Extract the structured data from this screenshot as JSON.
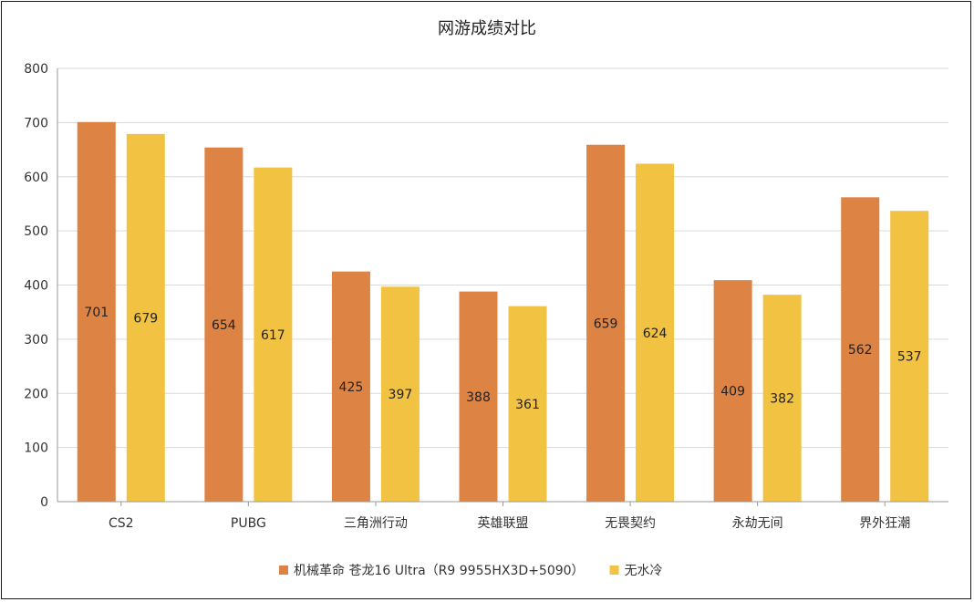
{
  "chart_data": {
    "type": "bar",
    "title": "网游成绩对比",
    "xlabel": "",
    "ylabel": "",
    "ylim": [
      0,
      800
    ],
    "yticks": [
      0,
      100,
      200,
      300,
      400,
      500,
      600,
      700,
      800
    ],
    "grid": true,
    "legend_position": "bottom",
    "categories": [
      "CS2",
      "PUBG",
      "三角洲行动",
      "英雄联盟",
      "无畏契约",
      "永劫无间",
      "界外狂潮"
    ],
    "series": [
      {
        "name": "机械革命 苍龙16 Ultra（R9 9955HX3D+5090）",
        "color": "#DD8444",
        "values": [
          701,
          654,
          425,
          388,
          659,
          409,
          562
        ]
      },
      {
        "name": "无水冷",
        "color": "#F2C242",
        "values": [
          679,
          617,
          397,
          361,
          624,
          382,
          537
        ]
      }
    ]
  }
}
